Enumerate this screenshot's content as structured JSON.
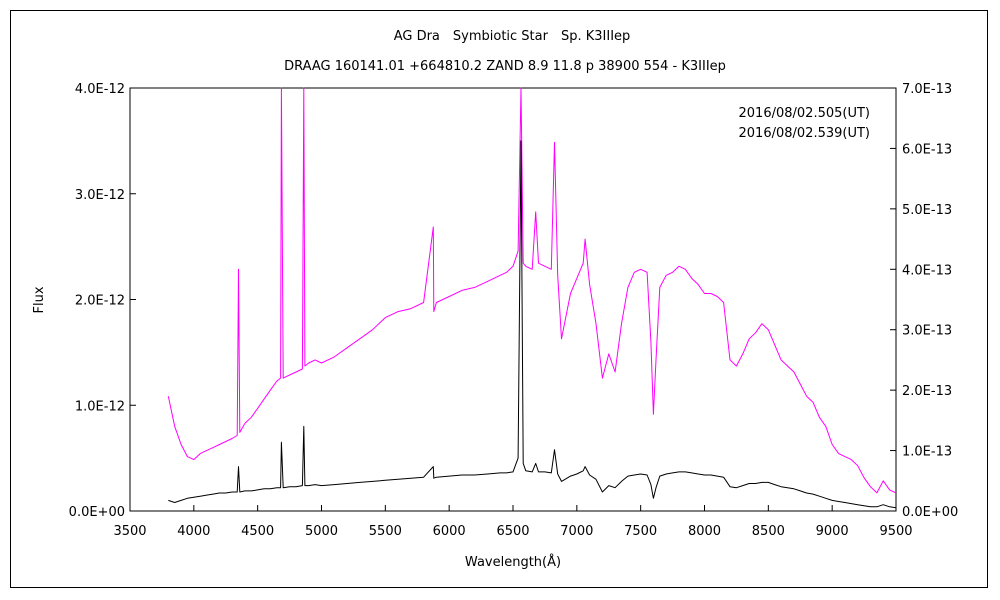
{
  "chart_data": {
    "type": "line",
    "title": "AG Dra　Symbiotic Star　Sp. K3IIIep",
    "subtitle": "DRAAG 160141.01 +664810.2 ZAND 8.9 11.8 p 38900 554 - K3IIIep",
    "xlabel": "Wavelength(Å)",
    "ylabel": "Flux",
    "xlim": [
      3500,
      9500
    ],
    "ylim_left": [
      0,
      4e-12
    ],
    "ylim_right": [
      0,
      7e-13
    ],
    "x_ticks": [
      3500,
      4000,
      4500,
      5000,
      5500,
      6000,
      6500,
      7000,
      7500,
      8000,
      8500,
      9000,
      9500
    ],
    "x_tick_labels": [
      "3500",
      "4000",
      "4500",
      "5000",
      "5500",
      "6000",
      "6500",
      "7000",
      "7500",
      "8000",
      "8500",
      "9000",
      "9500"
    ],
    "y_left_ticks": [
      0,
      1e-12,
      2e-12,
      3e-12,
      4e-12
    ],
    "y_left_tick_labels": [
      "0.0E+00",
      "1.0E-12",
      "2.0E-12",
      "3.0E-12",
      "4.0E-12"
    ],
    "y_right_ticks": [
      0,
      1e-13,
      2e-13,
      3e-13,
      4e-13,
      5e-13,
      6e-13,
      7e-13
    ],
    "y_right_tick_labels": [
      "0.0E+00",
      "1.0E-13",
      "2.0E-13",
      "3.0E-13",
      "4.0E-13",
      "5.0E-13",
      "6.0E-13",
      "7.0E-13"
    ],
    "grid": false,
    "legend_position": "top-right",
    "series": [
      {
        "name": "2016/08/02.505(UT)",
        "axis": "right",
        "color": "#ff00ff",
        "x": [
          3800,
          3850,
          3900,
          3950,
          4000,
          4050,
          4100,
          4150,
          4200,
          4250,
          4300,
          4340,
          4350,
          4360,
          4400,
          4450,
          4500,
          4550,
          4600,
          4650,
          4680,
          4686,
          4700,
          4750,
          4800,
          4850,
          4861,
          4870,
          4900,
          4950,
          5000,
          5100,
          5200,
          5300,
          5400,
          5500,
          5600,
          5700,
          5800,
          5876,
          5880,
          5900,
          6000,
          6100,
          6200,
          6300,
          6400,
          6450,
          6500,
          6540,
          6563,
          6580,
          6600,
          6650,
          6678,
          6700,
          6750,
          6800,
          6825,
          6850,
          6880,
          6950,
          7000,
          7050,
          7065,
          7100,
          7150,
          7200,
          7250,
          7300,
          7350,
          7400,
          7450,
          7500,
          7550,
          7580,
          7600,
          7620,
          7650,
          7700,
          7750,
          7800,
          7850,
          7900,
          7950,
          8000,
          8050,
          8100,
          8150,
          8200,
          8250,
          8300,
          8350,
          8400,
          8450,
          8500,
          8550,
          8600,
          8650,
          8700,
          8750,
          8800,
          8850,
          8900,
          8950,
          9000,
          9050,
          9100,
          9150,
          9200,
          9250,
          9300,
          9350,
          9400,
          9450,
          9500
        ],
        "y": [
          1.9e-13,
          1.4e-13,
          1.1e-13,
          9e-14,
          8.5e-14,
          9.5e-14,
          1e-13,
          1.05e-13,
          1.1e-13,
          1.15e-13,
          1.2e-13,
          1.25e-13,
          4e-13,
          1.3e-13,
          1.45e-13,
          1.55e-13,
          1.7e-13,
          1.85e-13,
          2e-13,
          2.15e-13,
          2.2e-13,
          7e-13,
          2.2e-13,
          2.25e-13,
          2.3e-13,
          2.35e-13,
          7e-13,
          2.4e-13,
          2.45e-13,
          2.5e-13,
          2.45e-13,
          2.55e-13,
          2.7e-13,
          2.85e-13,
          3e-13,
          3.2e-13,
          3.3e-13,
          3.35e-13,
          3.45e-13,
          4.7e-13,
          3.3e-13,
          3.45e-13,
          3.55e-13,
          3.65e-13,
          3.7e-13,
          3.8e-13,
          3.9e-13,
          3.95e-13,
          4.05e-13,
          4.3e-13,
          7e-13,
          4.1e-13,
          4.05e-13,
          4e-13,
          4.95e-13,
          4.1e-13,
          4.05e-13,
          4e-13,
          6.1e-13,
          3.9e-13,
          2.85e-13,
          3.6e-13,
          3.85e-13,
          4.1e-13,
          4.5e-13,
          3.75e-13,
          3.1e-13,
          2.2e-13,
          2.6e-13,
          2.3e-13,
          3.1e-13,
          3.7e-13,
          3.95e-13,
          4e-13,
          3.95e-13,
          2.8e-13,
          1.6e-13,
          2.5e-13,
          3.7e-13,
          3.9e-13,
          3.95e-13,
          4.05e-13,
          4e-13,
          3.85e-13,
          3.75e-13,
          3.6e-13,
          3.6e-13,
          3.55e-13,
          3.45e-13,
          2.5e-13,
          2.4e-13,
          2.6e-13,
          2.85e-13,
          2.95e-13,
          3.1e-13,
          3e-13,
          2.75e-13,
          2.5e-13,
          2.4e-13,
          2.3e-13,
          2.1e-13,
          1.9e-13,
          1.8e-13,
          1.55e-13,
          1.4e-13,
          1.1e-13,
          9.5e-14,
          9e-14,
          8.5e-14,
          7.5e-14,
          5.5e-14,
          4e-14,
          3e-14,
          5e-14,
          3.5e-14,
          3e-14
        ]
      },
      {
        "name": "2016/08/02.539(UT)",
        "axis": "left",
        "color": "#000000",
        "x": [
          3800,
          3850,
          3900,
          3950,
          4000,
          4050,
          4100,
          4150,
          4200,
          4250,
          4300,
          4340,
          4350,
          4360,
          4400,
          4450,
          4500,
          4550,
          4600,
          4650,
          4680,
          4686,
          4700,
          4750,
          4800,
          4850,
          4861,
          4870,
          4900,
          4950,
          5000,
          5100,
          5200,
          5300,
          5400,
          5500,
          5600,
          5700,
          5800,
          5876,
          5880,
          5900,
          6000,
          6100,
          6200,
          6300,
          6400,
          6450,
          6500,
          6540,
          6563,
          6580,
          6600,
          6650,
          6678,
          6700,
          6750,
          6800,
          6825,
          6850,
          6880,
          6950,
          7000,
          7050,
          7065,
          7100,
          7150,
          7200,
          7250,
          7300,
          7350,
          7400,
          7450,
          7500,
          7550,
          7580,
          7600,
          7620,
          7650,
          7700,
          7750,
          7800,
          7850,
          7900,
          7950,
          8000,
          8050,
          8100,
          8150,
          8200,
          8250,
          8300,
          8350,
          8400,
          8450,
          8500,
          8550,
          8600,
          8650,
          8700,
          8750,
          8800,
          8850,
          8900,
          8950,
          9000,
          9050,
          9100,
          9150,
          9200,
          9250,
          9300,
          9350,
          9400,
          9450,
          9500
        ],
        "y": [
          1e-13,
          8e-14,
          1e-13,
          1.2e-13,
          1.3e-13,
          1.4e-13,
          1.5e-13,
          1.6e-13,
          1.7e-13,
          1.7e-13,
          1.8e-13,
          1.8e-13,
          4.2e-13,
          1.8e-13,
          1.9e-13,
          1.9e-13,
          2e-13,
          2.1e-13,
          2.1e-13,
          2.2e-13,
          2.2e-13,
          6.5e-13,
          2.2e-13,
          2.3e-13,
          2.3e-13,
          2.4e-13,
          8e-13,
          2.4e-13,
          2.4e-13,
          2.5e-13,
          2.4e-13,
          2.5e-13,
          2.6e-13,
          2.7e-13,
          2.8e-13,
          2.9e-13,
          3e-13,
          3.1e-13,
          3.2e-13,
          4.2e-13,
          3.1e-13,
          3.2e-13,
          3.3e-13,
          3.4e-13,
          3.4e-13,
          3.5e-13,
          3.6e-13,
          3.6e-13,
          3.7e-13,
          5e-13,
          3.5e-12,
          4.5e-13,
          3.8e-13,
          3.7e-13,
          4.5e-13,
          3.7e-13,
          3.7e-13,
          3.6e-13,
          5.8e-13,
          3.5e-13,
          2.8e-13,
          3.3e-13,
          3.5e-13,
          3.8e-13,
          4.2e-13,
          3.4e-13,
          3e-13,
          1.8e-13,
          2.4e-13,
          2.2e-13,
          2.8e-13,
          3.3e-13,
          3.4e-13,
          3.5e-13,
          3.4e-13,
          2.5e-13,
          1.2e-13,
          2.2e-13,
          3.3e-13,
          3.5e-13,
          3.6e-13,
          3.7e-13,
          3.7e-13,
          3.6e-13,
          3.5e-13,
          3.4e-13,
          3.4e-13,
          3.3e-13,
          3.2e-13,
          2.3e-13,
          2.2e-13,
          2.4e-13,
          2.6e-13,
          2.6e-13,
          2.7e-13,
          2.7e-13,
          2.5e-13,
          2.3e-13,
          2.2e-13,
          2.1e-13,
          1.9e-13,
          1.7e-13,
          1.6e-13,
          1.4e-13,
          1.2e-13,
          1e-13,
          9e-14,
          8e-14,
          7e-14,
          6e-14,
          5e-14,
          4e-14,
          4e-14,
          6e-14,
          4e-14,
          3e-14
        ]
      }
    ]
  }
}
